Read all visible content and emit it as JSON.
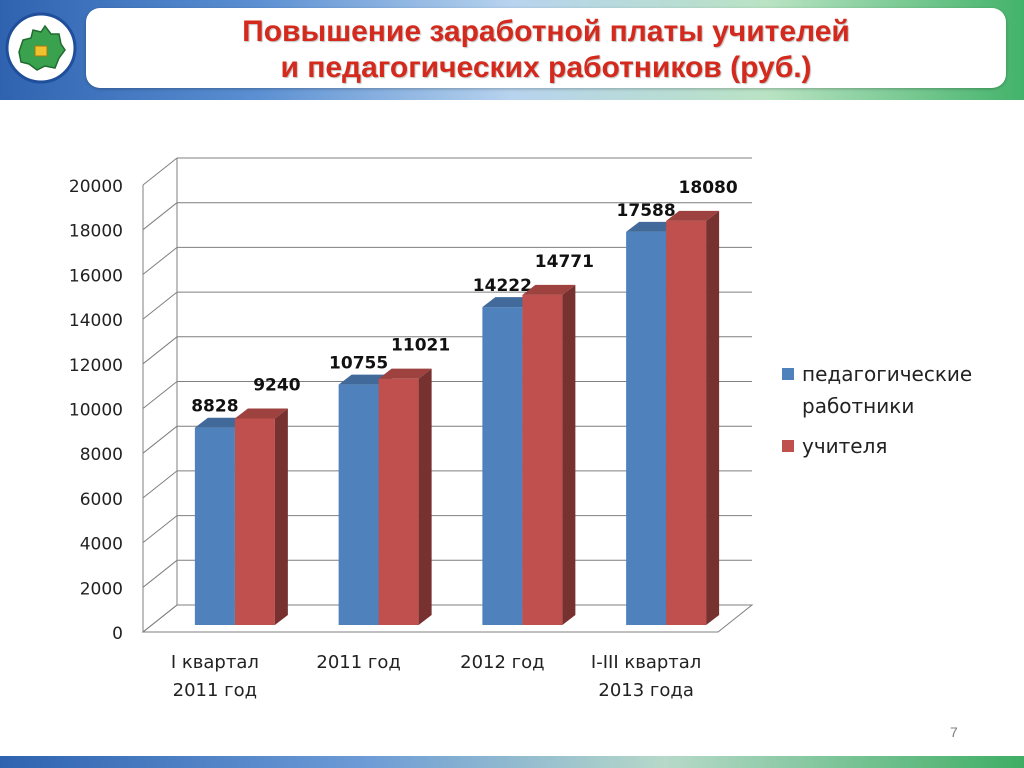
{
  "title": {
    "line1": "Повышение заработной платы учителей",
    "line2": "и педагогических работников (руб.)"
  },
  "logo": {
    "icon": "region-map-emblem-icon"
  },
  "page_number": "7",
  "colors": {
    "series1": "#4f81bd",
    "series2": "#c0504d",
    "title": "#d42a1e",
    "grid": "#7f7f7f"
  },
  "chart_data": {
    "type": "bar",
    "title": "Повышение заработной платы учителей и педагогических работников (руб.)",
    "categories": [
      [
        "I квартал",
        "2011 год"
      ],
      [
        "2011 год"
      ],
      [
        "2012 год"
      ],
      [
        "I-III квартал",
        "2013 года"
      ]
    ],
    "series": [
      {
        "name": "педагогические работники",
        "legend_lines": [
          "педагогические",
          "работники"
        ],
        "values": [
          8828,
          10755,
          14222,
          17588
        ],
        "color": "#4f81bd"
      },
      {
        "name": "учителя",
        "legend_lines": [
          "учителя"
        ],
        "values": [
          9240,
          11021,
          14771,
          18080
        ],
        "color": "#c0504d"
      }
    ],
    "y_ticks": [
      "0",
      "2000",
      "4000",
      "6000",
      "8000",
      "10000",
      "12000",
      "14000",
      "16000",
      "18000",
      "20000"
    ],
    "ylim": [
      0,
      20000
    ],
    "grid": true,
    "style": "3d-clustered-column",
    "legend_position": "right"
  }
}
